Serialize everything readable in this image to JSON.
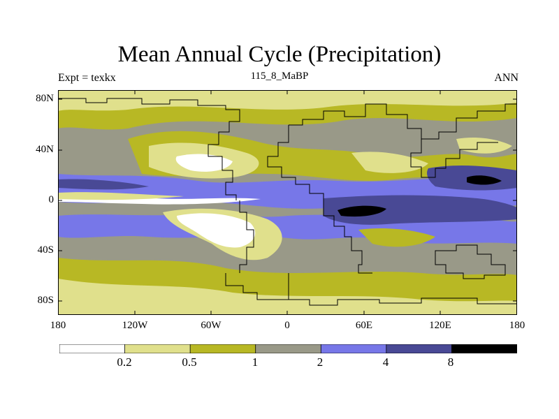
{
  "title": "Mean Annual Cycle (Precipitation)",
  "experiment_label": "Expt = texkx",
  "subtitle": "115_8_MaBP",
  "season": "ANN",
  "lat_labels": [
    "80N",
    "40N",
    "0",
    "40S",
    "80S"
  ],
  "lon_labels": [
    "180",
    "120W",
    "60W",
    "0",
    "60E",
    "120E",
    "180"
  ],
  "colorbar": {
    "levels": [
      "0.2",
      "0.5",
      "1",
      "2",
      "4",
      "8"
    ],
    "colors": [
      "#ffffff",
      "#e0e08c",
      "#b8b824",
      "#999988",
      "#7777e8",
      "#494995",
      "#000000"
    ]
  }
}
